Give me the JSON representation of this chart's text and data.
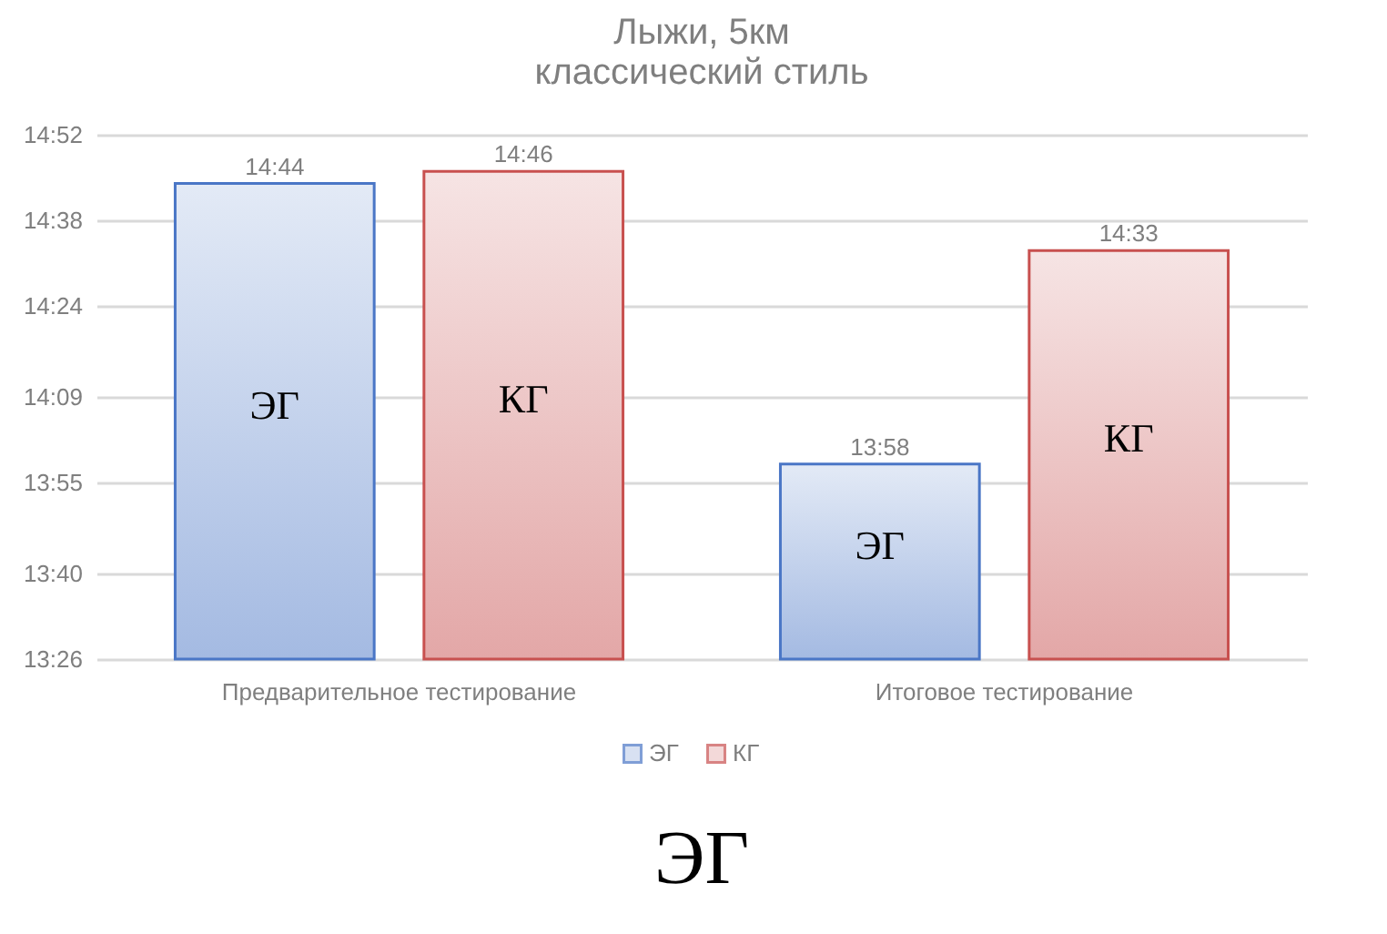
{
  "chart_data": {
    "type": "bar",
    "title": [
      "Лыжи, 5км",
      "классический стиль"
    ],
    "categories": [
      "Предварительное тестирование",
      "Итоговое тестирование"
    ],
    "series": [
      {
        "name": "ЭГ",
        "color": "#4a76c6",
        "values": [
          884,
          838
        ],
        "value_labels": [
          "14:44",
          "13:58"
        ]
      },
      {
        "name": "КГ",
        "color": "#c8504f",
        "values": [
          886,
          873
        ],
        "value_labels": [
          "14:46",
          "14:33"
        ]
      }
    ],
    "ylim": [
      806,
      892
    ],
    "yticks": [
      {
        "value": 806,
        "label": "13:26"
      },
      {
        "value": 820,
        "label": "13:40"
      },
      {
        "value": 835,
        "label": "13:55"
      },
      {
        "value": 849,
        "label": "14:09"
      },
      {
        "value": 864,
        "label": "14:24"
      },
      {
        "value": 878,
        "label": "14:38"
      },
      {
        "value": 892,
        "label": "14:52"
      }
    ],
    "grid": "y",
    "legend": "bottom",
    "annotations": [
      "ЭГ",
      "КГ",
      "ЭГ",
      "КГ",
      "ЭГ"
    ]
  }
}
